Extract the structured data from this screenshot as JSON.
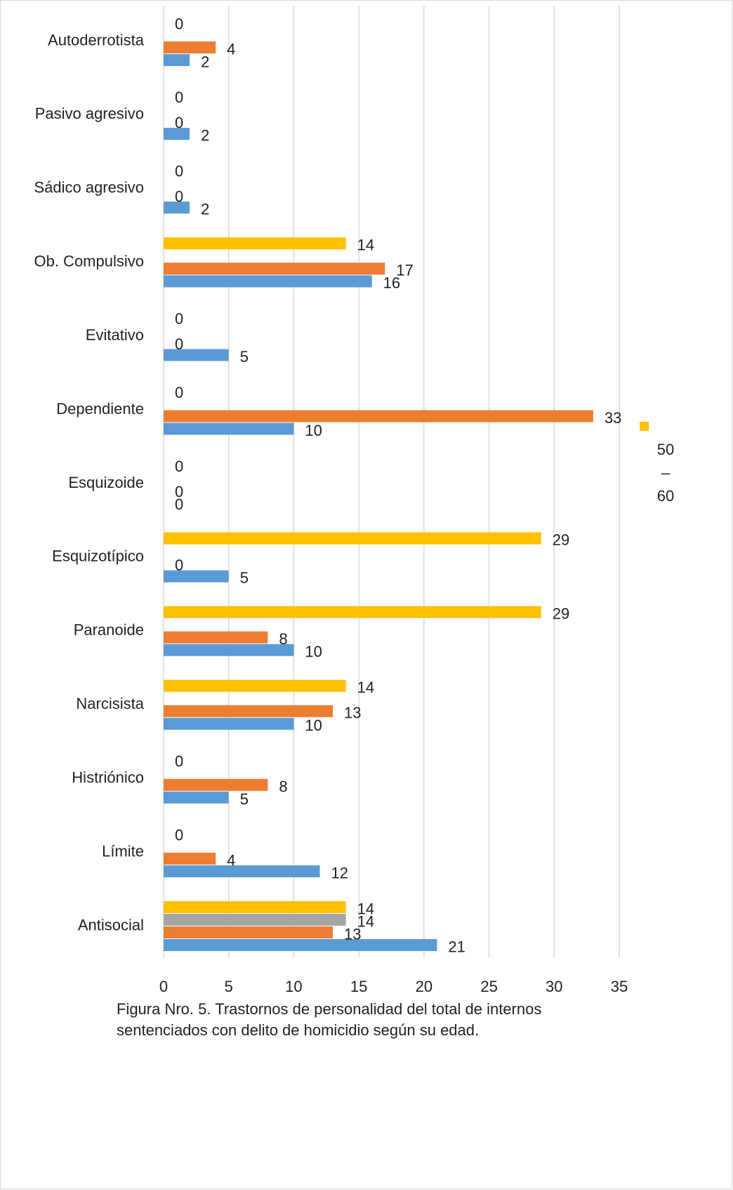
{
  "chart_data": {
    "type": "hbar",
    "caption": [
      "Figura Nro. 5.  Trastornos de personalidad del total de internos",
      "sentenciados con delito de homicidio según su edad."
    ],
    "categories": [
      "Autoderrotista",
      "Pasivo agresivo",
      "Sádico agresivo",
      "Ob. Compulsivo",
      "Evitativo",
      "Dependiente",
      "Esquizoide",
      "Esquizotípico",
      "Paranoide",
      "Narcisista",
      "Histriónico",
      "Límite",
      "Antisocial"
    ],
    "series": [
      {
        "color": "#5b9bd5",
        "values": [
          2,
          2,
          2,
          16,
          5,
          10,
          0,
          5,
          10,
          10,
          5,
          12,
          21
        ]
      },
      {
        "color": "#ed7d31",
        "values": [
          4,
          0,
          0,
          17,
          0,
          33,
          0,
          0,
          8,
          13,
          8,
          4,
          13
        ]
      },
      {
        "color": "#a5a5a5",
        "values": [
          null,
          null,
          null,
          null,
          null,
          null,
          null,
          null,
          null,
          null,
          null,
          null,
          14
        ]
      },
      {
        "name": "50 – 60",
        "color": "#ffc000",
        "values": [
          0,
          0,
          0,
          14,
          0,
          0,
          0,
          29,
          29,
          14,
          0,
          0,
          14
        ]
      }
    ],
    "xlim": [
      0,
      35
    ],
    "xticks": [
      0,
      5,
      10,
      15,
      20,
      25,
      30,
      35
    ],
    "grid": true
  }
}
